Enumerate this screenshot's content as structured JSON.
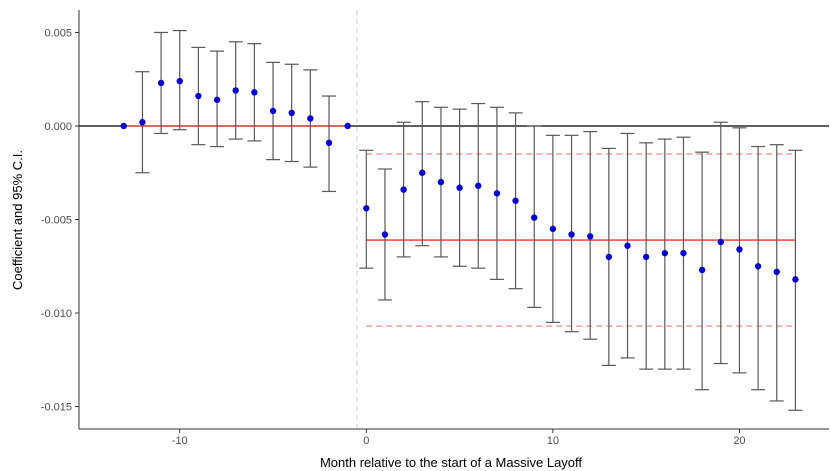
{
  "chart_data": {
    "type": "scatter",
    "title": "",
    "xlabel": "Month relative to the start of a Massive Layoff",
    "ylabel": "Coefficient and 95% C.I.",
    "xlim": [
      -15.4,
      24.8
    ],
    "ylim": [
      -0.0162,
      0.0062
    ],
    "x_ticks": [
      -10,
      0,
      10,
      20
    ],
    "x_tick_labels": [
      "-10",
      "0",
      "10",
      "20"
    ],
    "y_ticks": [
      0.005,
      0.0,
      -0.005,
      -0.01,
      -0.015
    ],
    "y_tick_labels": [
      "0.005",
      "0.000",
      "-0.005",
      "-0.010",
      "-0.015"
    ],
    "grid": false,
    "reference_lines": {
      "zero_line": 0.0,
      "event_vline_x": -0.5,
      "pre_mean": {
        "value": 0.0,
        "x_range": [
          -13,
          -1
        ]
      },
      "post_mean": {
        "value": -0.0061,
        "x_range": [
          0,
          23
        ]
      },
      "post_ci_upper": -0.0015,
      "post_ci_lower": -0.0107
    },
    "points": [
      {
        "x": -13,
        "y": 0.0,
        "lo": null,
        "hi": null
      },
      {
        "x": -12,
        "y": 0.0002,
        "lo": -0.0025,
        "hi": 0.0029
      },
      {
        "x": -11,
        "y": 0.0023,
        "lo": -0.0004,
        "hi": 0.005
      },
      {
        "x": -10,
        "y": 0.0024,
        "lo": -0.0002,
        "hi": 0.0051
      },
      {
        "x": -9,
        "y": 0.0016,
        "lo": -0.001,
        "hi": 0.0042
      },
      {
        "x": -8,
        "y": 0.0014,
        "lo": -0.0011,
        "hi": 0.004
      },
      {
        "x": -7,
        "y": 0.0019,
        "lo": -0.0007,
        "hi": 0.0045
      },
      {
        "x": -6,
        "y": 0.0018,
        "lo": -0.0008,
        "hi": 0.0044
      },
      {
        "x": -5,
        "y": 0.0008,
        "lo": -0.0018,
        "hi": 0.0034
      },
      {
        "x": -4,
        "y": 0.0007,
        "lo": -0.0019,
        "hi": 0.0033
      },
      {
        "x": -3,
        "y": 0.0004,
        "lo": -0.0022,
        "hi": 0.003
      },
      {
        "x": -2,
        "y": -0.0009,
        "lo": -0.0035,
        "hi": 0.0016
      },
      {
        "x": -1,
        "y": 0.0,
        "lo": null,
        "hi": null
      },
      {
        "x": 0,
        "y": -0.0044,
        "lo": -0.0076,
        "hi": -0.0013
      },
      {
        "x": 1,
        "y": -0.0058,
        "lo": -0.0093,
        "hi": -0.0023
      },
      {
        "x": 2,
        "y": -0.0034,
        "lo": -0.007,
        "hi": 0.0002
      },
      {
        "x": 3,
        "y": -0.0025,
        "lo": -0.0064,
        "hi": 0.0013
      },
      {
        "x": 4,
        "y": -0.003,
        "lo": -0.007,
        "hi": 0.001
      },
      {
        "x": 5,
        "y": -0.0033,
        "lo": -0.0075,
        "hi": 0.0009
      },
      {
        "x": 6,
        "y": -0.0032,
        "lo": -0.0076,
        "hi": 0.0012
      },
      {
        "x": 7,
        "y": -0.0036,
        "lo": -0.0082,
        "hi": 0.001
      },
      {
        "x": 8,
        "y": -0.004,
        "lo": -0.0087,
        "hi": 0.0007
      },
      {
        "x": 9,
        "y": -0.0049,
        "lo": -0.0097,
        "hi": 0.0
      },
      {
        "x": 10,
        "y": -0.0055,
        "lo": -0.0105,
        "hi": -0.0005
      },
      {
        "x": 11,
        "y": -0.0058,
        "lo": -0.011,
        "hi": -0.0005
      },
      {
        "x": 12,
        "y": -0.0059,
        "lo": -0.0114,
        "hi": -0.0003
      },
      {
        "x": 13,
        "y": -0.007,
        "lo": -0.0128,
        "hi": -0.0012
      },
      {
        "x": 14,
        "y": -0.0064,
        "lo": -0.0124,
        "hi": -0.0004
      },
      {
        "x": 15,
        "y": -0.007,
        "lo": -0.013,
        "hi": -0.0009
      },
      {
        "x": 16,
        "y": -0.0068,
        "lo": -0.013,
        "hi": -0.0007
      },
      {
        "x": 17,
        "y": -0.0068,
        "lo": -0.013,
        "hi": -0.0006
      },
      {
        "x": 18,
        "y": -0.0077,
        "lo": -0.0141,
        "hi": -0.0014
      },
      {
        "x": 19,
        "y": -0.0062,
        "lo": -0.0127,
        "hi": 0.0002
      },
      {
        "x": 20,
        "y": -0.0066,
        "lo": -0.0132,
        "hi": -0.0001
      },
      {
        "x": 21,
        "y": -0.0075,
        "lo": -0.0141,
        "hi": -0.0011
      },
      {
        "x": 22,
        "y": -0.0078,
        "lo": -0.0147,
        "hi": -0.001
      },
      {
        "x": 23,
        "y": -0.0082,
        "lo": -0.0152,
        "hi": -0.0013
      }
    ],
    "colors": {
      "point": "#0000cd",
      "errorbar": "#595959",
      "mean_line": "#e8342a",
      "ci_line": "#f08a8a",
      "zero_line": "#000000",
      "event_line": "#cccccc",
      "axis": "#333333"
    }
  }
}
